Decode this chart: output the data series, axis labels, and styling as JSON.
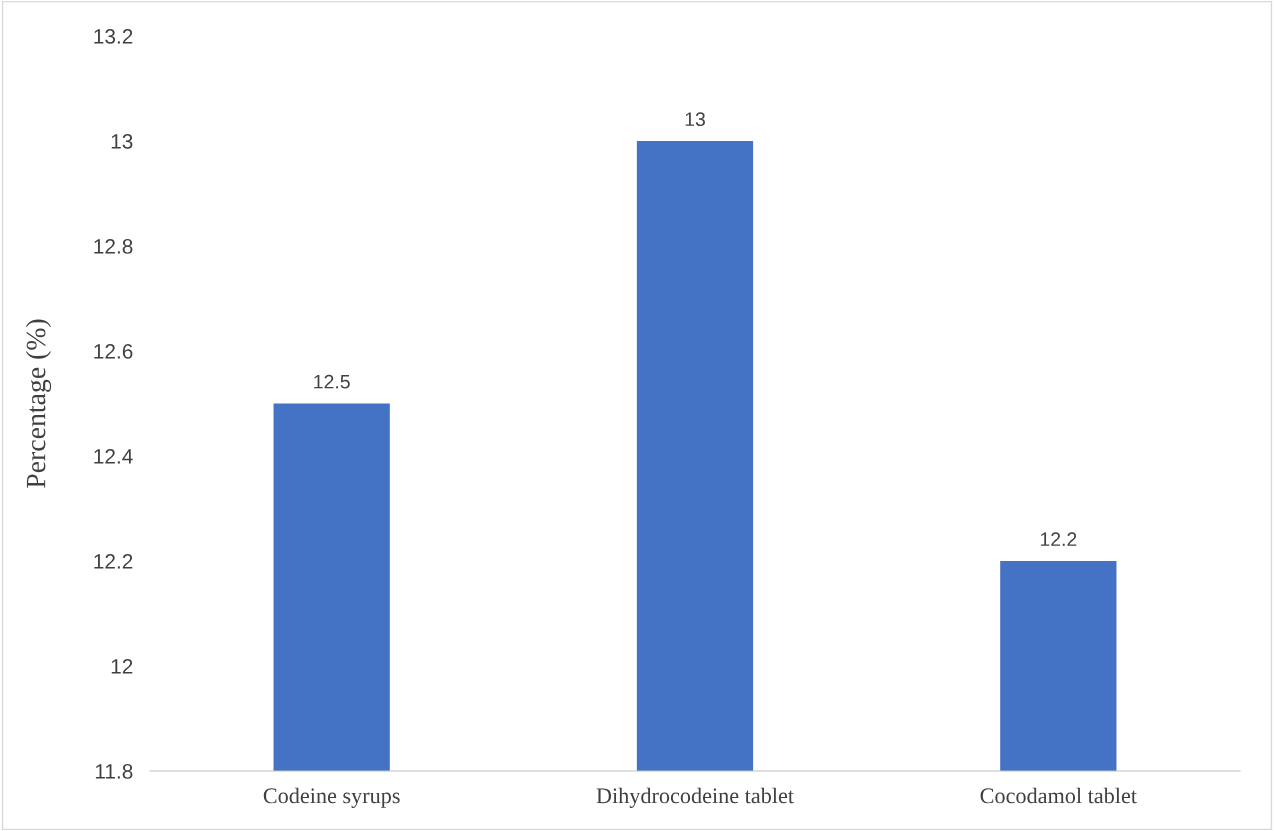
{
  "chart_data": {
    "type": "bar",
    "ylabel": "Percentage (%)",
    "categories": [
      "Codeine syrups",
      "Dihydrocodeine tablet",
      "Cocodamol tablet"
    ],
    "values": [
      12.5,
      13,
      12.2
    ],
    "color": "#4472c4",
    "ylim": [
      11.8,
      13.2
    ],
    "yticks": [
      {
        "value": 11.8,
        "label": "11.8"
      },
      {
        "value": 12,
        "label": "12"
      },
      {
        "value": 12.2,
        "label": "12.2"
      },
      {
        "value": 12.4,
        "label": "12.4"
      },
      {
        "value": 12.6,
        "label": "12.6"
      },
      {
        "value": 12.8,
        "label": "12.8"
      },
      {
        "value": 13,
        "label": "13"
      },
      {
        "value": 13.2,
        "label": "13.2"
      }
    ],
    "data_labels": true,
    "grid": false,
    "legend": false
  }
}
